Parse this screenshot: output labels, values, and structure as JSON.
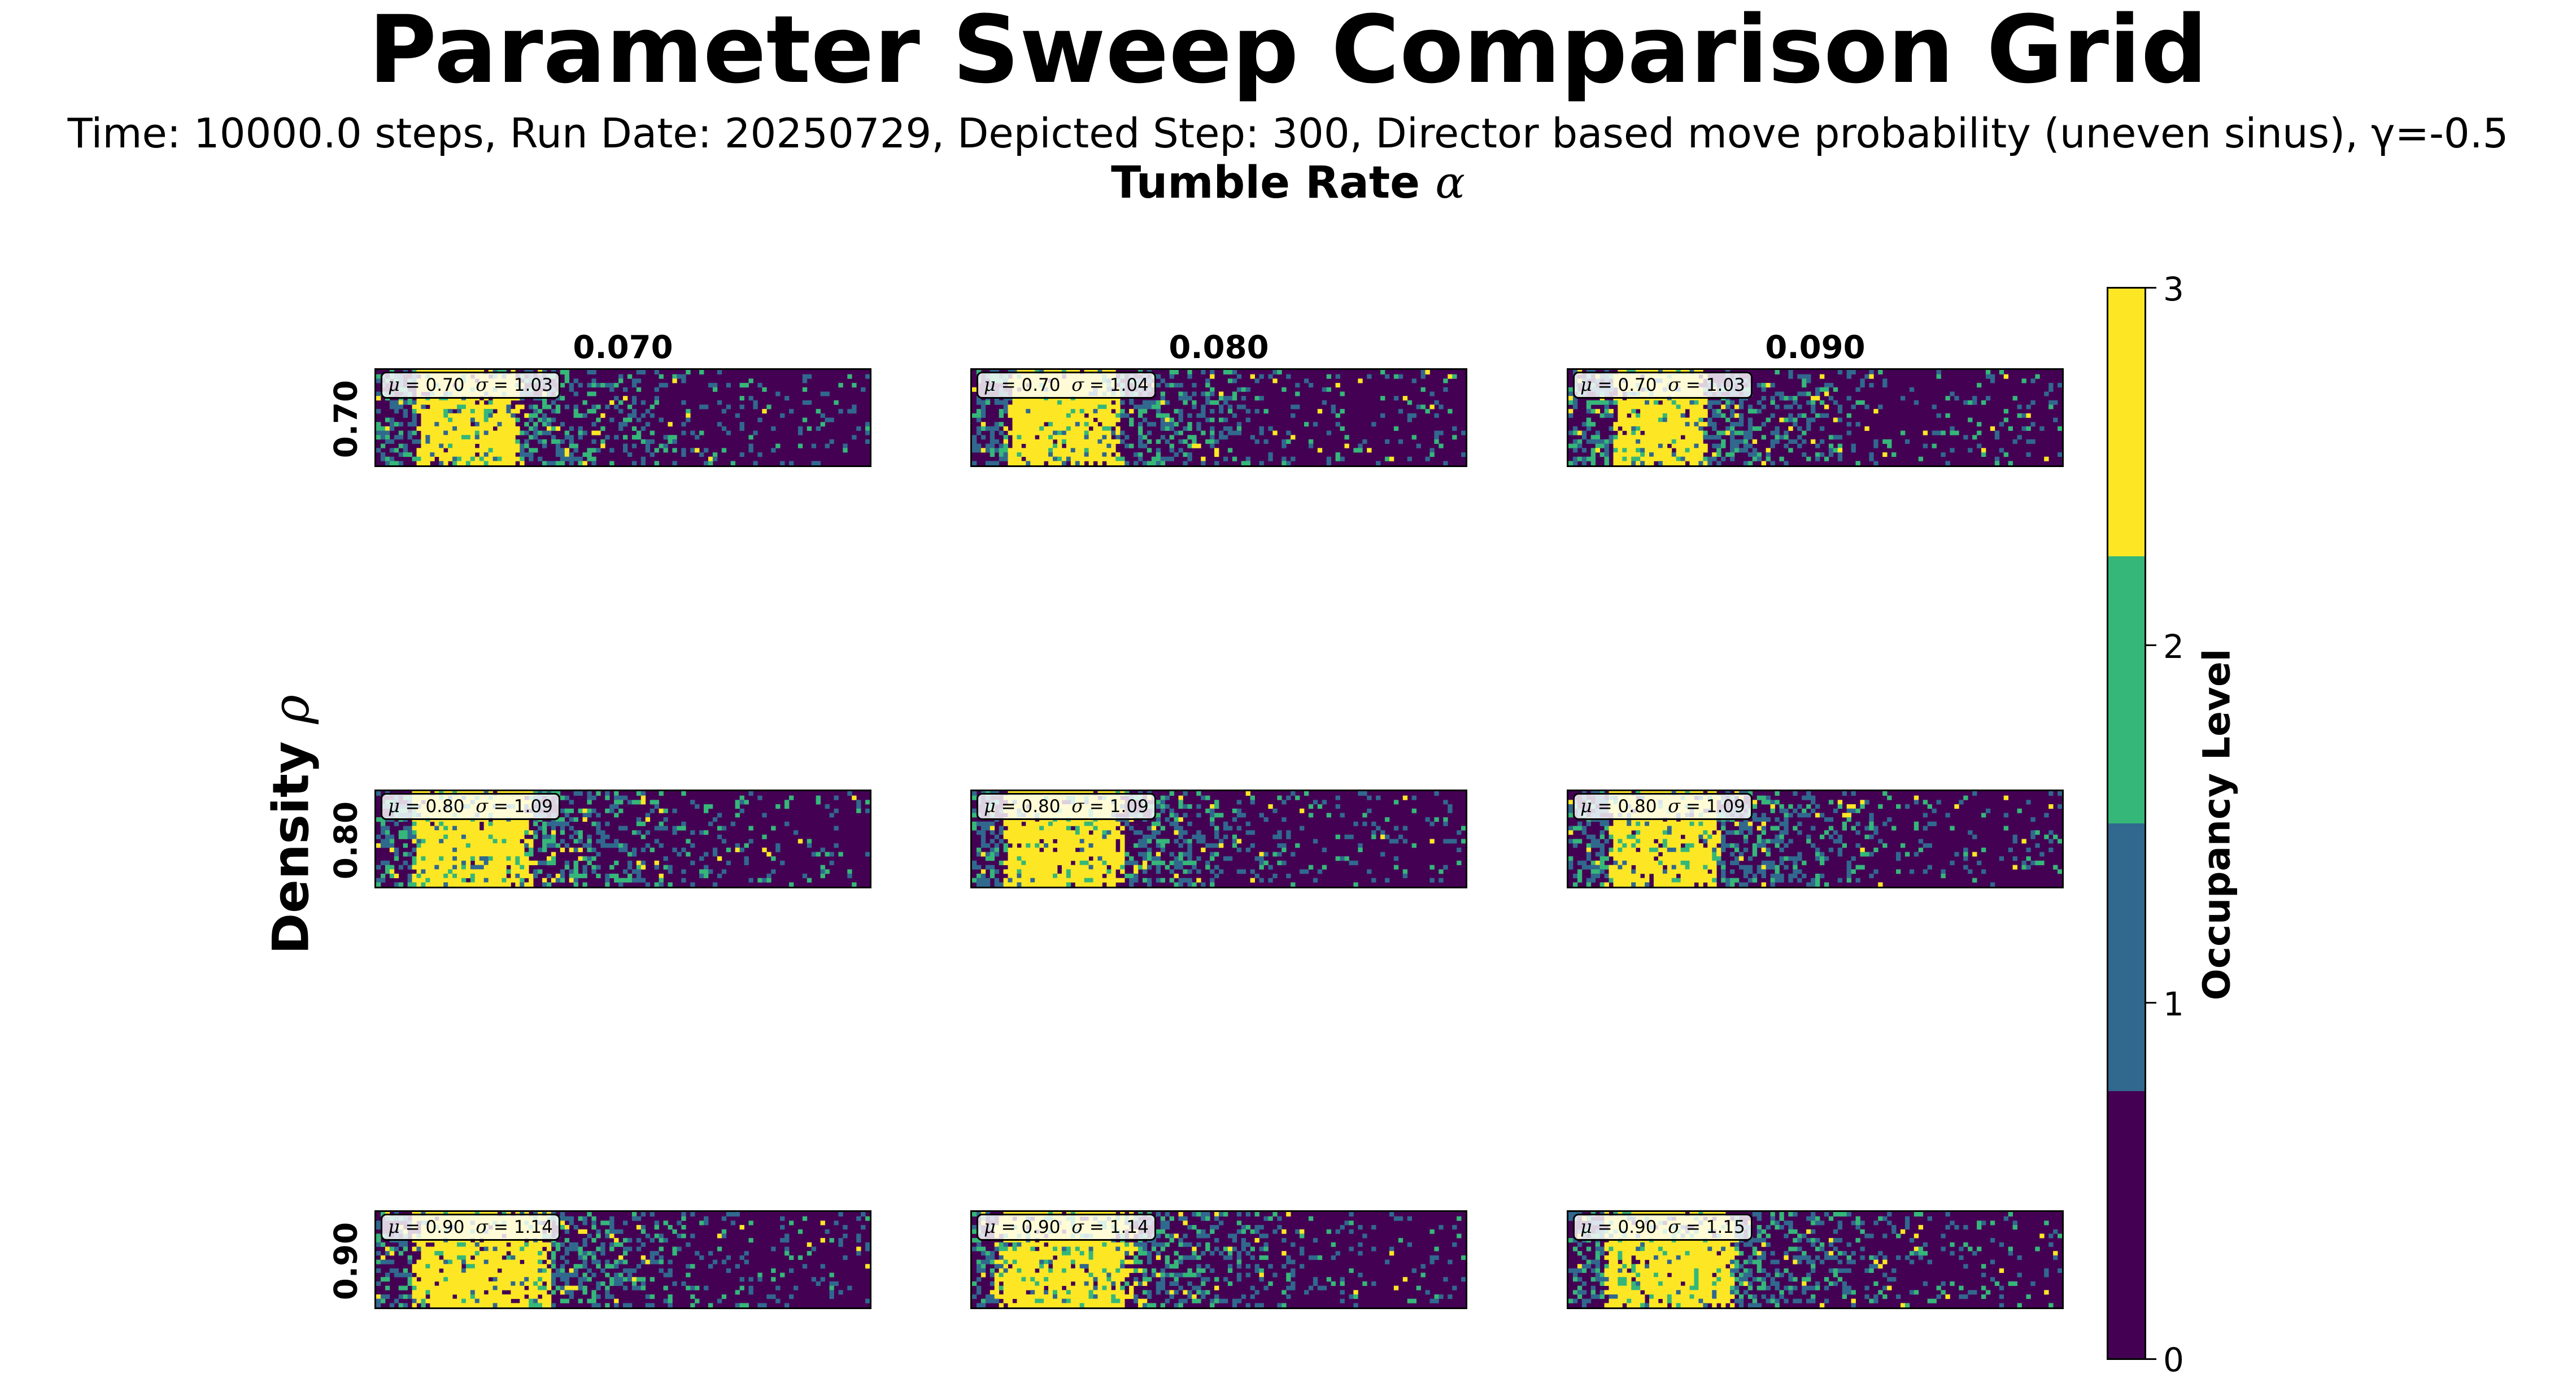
{
  "chart_data": {
    "type": "heatmap",
    "title": "Parameter Sweep Comparison Grid",
    "subtitle": "Time: 10000.0 steps, Run Date: 20250729, Depicted Step: 300, Director based move probability (uneven sinus), γ=-0.5",
    "column_axis": {
      "label": "Tumble Rate",
      "symbol": "α",
      "values": [
        "0.070",
        "0.080",
        "0.090"
      ]
    },
    "row_axis": {
      "label": "Density",
      "symbol": "ρ",
      "values": [
        "0.70",
        "0.80",
        "0.90"
      ]
    },
    "colorbar": {
      "label": "Occupancy Level",
      "ticks": [
        "0",
        "1",
        "2",
        "3"
      ],
      "colors": [
        "#440154",
        "#31688e",
        "#35b779",
        "#fde725"
      ],
      "range": [
        0,
        3
      ]
    },
    "panels": [
      {
        "row": "0.70",
        "col": "0.070",
        "mu": "0.70",
        "sigma": "1.03",
        "cluster_start": 0.08,
        "cluster_end": 0.29
      },
      {
        "row": "0.70",
        "col": "0.080",
        "mu": "0.70",
        "sigma": "1.04",
        "cluster_start": 0.07,
        "cluster_end": 0.3
      },
      {
        "row": "0.70",
        "col": "0.090",
        "mu": "0.70",
        "sigma": "1.03",
        "cluster_start": 0.09,
        "cluster_end": 0.28
      },
      {
        "row": "0.80",
        "col": "0.070",
        "mu": "0.80",
        "sigma": "1.09",
        "cluster_start": 0.07,
        "cluster_end": 0.32
      },
      {
        "row": "0.80",
        "col": "0.080",
        "mu": "0.80",
        "sigma": "1.09",
        "cluster_start": 0.06,
        "cluster_end": 0.31
      },
      {
        "row": "0.80",
        "col": "0.090",
        "mu": "0.80",
        "sigma": "1.09",
        "cluster_start": 0.08,
        "cluster_end": 0.31
      },
      {
        "row": "0.90",
        "col": "0.070",
        "mu": "0.90",
        "sigma": "1.14",
        "cluster_start": 0.07,
        "cluster_end": 0.35
      },
      {
        "row": "0.90",
        "col": "0.080",
        "mu": "0.90",
        "sigma": "1.14",
        "cluster_start": 0.05,
        "cluster_end": 0.33
      },
      {
        "row": "0.90",
        "col": "0.090",
        "mu": "0.90",
        "sigma": "1.15",
        "cluster_start": 0.07,
        "cluster_end": 0.34
      }
    ]
  }
}
